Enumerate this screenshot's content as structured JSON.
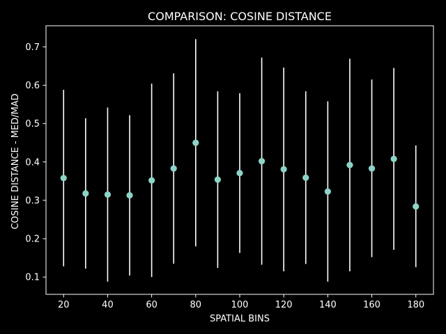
{
  "chart_data": {
    "type": "scatter",
    "title": "COMPARISON: COSINE DISTANCE",
    "xlabel": "SPATIAL BINS",
    "ylabel": "COSINE DISTANCE - MED/MAD",
    "xlim": [
      12,
      188
    ],
    "ylim": [
      0.055,
      0.755
    ],
    "x_ticks": [
      20,
      40,
      60,
      80,
      100,
      120,
      140,
      160,
      180
    ],
    "y_ticks": [
      0.1,
      0.2,
      0.3,
      0.4,
      0.5,
      0.6,
      0.7
    ],
    "y_tick_labels": [
      "0.1",
      "0.2",
      "0.3",
      "0.4",
      "0.5",
      "0.6",
      "0.7"
    ],
    "grid": false,
    "colors": {
      "background": "#000000",
      "marker": "#8dd3c7",
      "errorbar": "#ffffff",
      "axes": "#ffffff",
      "text": "#ffffff"
    },
    "points": [
      {
        "x": 20,
        "y": 0.358,
        "lo": 0.128,
        "hi": 0.588
      },
      {
        "x": 30,
        "y": 0.318,
        "lo": 0.122,
        "hi": 0.514
      },
      {
        "x": 40,
        "y": 0.315,
        "lo": 0.088,
        "hi": 0.542
      },
      {
        "x": 50,
        "y": 0.313,
        "lo": 0.104,
        "hi": 0.522
      },
      {
        "x": 60,
        "y": 0.352,
        "lo": 0.1,
        "hi": 0.604
      },
      {
        "x": 70,
        "y": 0.383,
        "lo": 0.135,
        "hi": 0.631
      },
      {
        "x": 80,
        "y": 0.45,
        "lo": 0.18,
        "hi": 0.72
      },
      {
        "x": 90,
        "y": 0.354,
        "lo": 0.124,
        "hi": 0.584
      },
      {
        "x": 100,
        "y": 0.371,
        "lo": 0.163,
        "hi": 0.579
      },
      {
        "x": 110,
        "y": 0.402,
        "lo": 0.132,
        "hi": 0.672
      },
      {
        "x": 120,
        "y": 0.381,
        "lo": 0.115,
        "hi": 0.646
      },
      {
        "x": 130,
        "y": 0.359,
        "lo": 0.134,
        "hi": 0.584
      },
      {
        "x": 140,
        "y": 0.323,
        "lo": 0.088,
        "hi": 0.558
      },
      {
        "x": 150,
        "y": 0.392,
        "lo": 0.115,
        "hi": 0.669
      },
      {
        "x": 160,
        "y": 0.383,
        "lo": 0.152,
        "hi": 0.615
      },
      {
        "x": 170,
        "y": 0.408,
        "lo": 0.171,
        "hi": 0.645
      },
      {
        "x": 180,
        "y": 0.284,
        "lo": 0.126,
        "hi": 0.443
      }
    ]
  }
}
